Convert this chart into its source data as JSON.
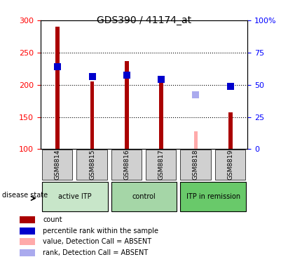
{
  "title": "GDS390 / 41174_at",
  "samples": [
    "GSM8814",
    "GSM8815",
    "GSM8816",
    "GSM8817",
    "GSM8818",
    "GSM8819"
  ],
  "groups": [
    {
      "label": "active ITP",
      "samples": [
        "GSM8814",
        "GSM8815"
      ],
      "color": "#c8e6c9"
    },
    {
      "label": "control",
      "samples": [
        "GSM8816",
        "GSM8817"
      ],
      "color": "#a5d6a7"
    },
    {
      "label": "ITP in remission",
      "samples": [
        "GSM8818",
        "GSM8819"
      ],
      "color": "#69c96a"
    }
  ],
  "count_values": [
    290,
    205,
    237,
    208,
    null,
    157
  ],
  "count_absent": [
    null,
    null,
    null,
    null,
    128,
    null
  ],
  "percentile_values": [
    228,
    213,
    215,
    208,
    null,
    198
  ],
  "percentile_absent": [
    null,
    null,
    null,
    null,
    184,
    null
  ],
  "ylim_left": [
    100,
    300
  ],
  "ylim_right": [
    0,
    100
  ],
  "yticks_left": [
    100,
    150,
    200,
    250,
    300
  ],
  "yticks_right": [
    0,
    25,
    50,
    75,
    100
  ],
  "ytick_labels_right": [
    "0",
    "25",
    "50",
    "75",
    "100%"
  ],
  "bar_width": 0.08,
  "dot_size": 50,
  "bar_color": "#aa0000",
  "bar_absent_color": "#ffaaaa",
  "dot_color": "#0000cc",
  "dot_absent_color": "#aaaaee",
  "grid_color": "#000000",
  "bg_color": "#f0f0f0",
  "plot_bg": "#ffffff",
  "legend_items": [
    {
      "label": "count",
      "color": "#aa0000",
      "marker": "s"
    },
    {
      "label": "percentile rank within the sample",
      "color": "#0000cc",
      "marker": "s"
    },
    {
      "label": "value, Detection Call = ABSENT",
      "color": "#ffaaaa",
      "marker": "s"
    },
    {
      "label": "rank, Detection Call = ABSENT",
      "color": "#aaaaee",
      "marker": "s"
    }
  ]
}
